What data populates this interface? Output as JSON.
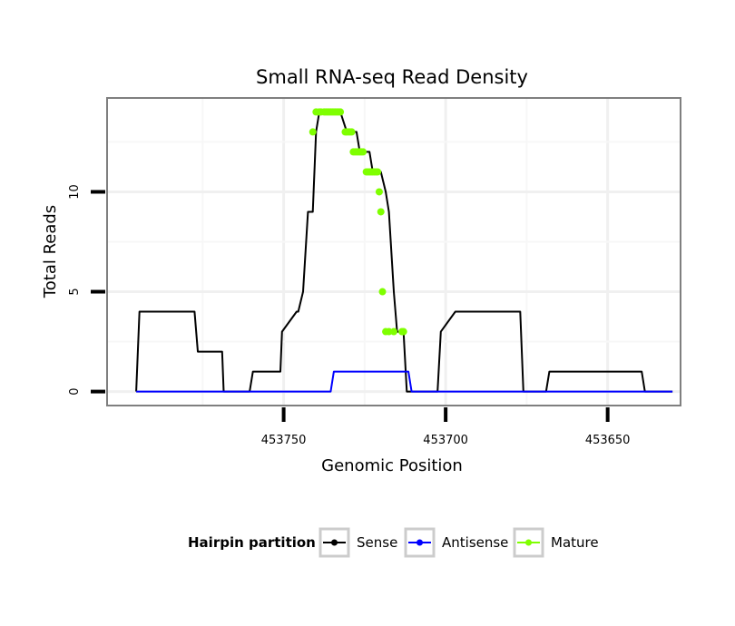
{
  "chart_data": {
    "type": "line",
    "title": "Small RNA-seq Read Density",
    "xlabel": "Genomic Position",
    "ylabel": "Total Reads",
    "x_reversed": true,
    "xlim": [
      453627.5,
      453804.5
    ],
    "ylim": [
      -0.7,
      14.7
    ],
    "x_ticks": [
      453750,
      453700,
      453650
    ],
    "x_tick_labels": [
      "453750",
      "453700",
      "453650"
    ],
    "y_ticks": [
      0,
      5,
      10
    ],
    "y_tick_labels": [
      "0",
      "5",
      "10"
    ],
    "grid": true,
    "legend": {
      "title": "Hairpin partition",
      "position": "bottom",
      "entries": [
        {
          "name": "Sense",
          "color": "#000000"
        },
        {
          "name": "Antisense",
          "color": "#0000ff"
        },
        {
          "name": "Mature",
          "color": "#7fff00"
        }
      ]
    },
    "series": [
      {
        "name": "Sense",
        "color": "#000000",
        "x": [
          453795.5,
          453794.5,
          453777.5,
          453776.5,
          453769,
          453768.5,
          453760.5,
          453759.5,
          453751,
          453750.5,
          453746,
          453745.5,
          453744,
          453742.5,
          453741,
          453740,
          453739,
          453737.5,
          453737,
          453736.5,
          453733.5,
          453732.5,
          453730.5,
          453729.5,
          453729,
          453727.5,
          453726.5,
          453725,
          453724.5,
          453724,
          453723.5,
          453722.5,
          453721,
          453720,
          453718.5,
          453717.5,
          453716,
          453715,
          453713,
          453712,
          453711,
          453709.5,
          453707.5,
          453705,
          453704.5,
          453703,
          453702.5,
          453701.5,
          453697,
          453696.5,
          453677,
          453676,
          453669,
          453668,
          453639.5,
          453638.5,
          453630
        ],
        "y": [
          0,
          4,
          4,
          2,
          2,
          0,
          0,
          1,
          1,
          3,
          4,
          4,
          5,
          9,
          9,
          13,
          14,
          14,
          14,
          14,
          14,
          14,
          13,
          13,
          13,
          13,
          12,
          12,
          12,
          12,
          12,
          11,
          11,
          11,
          10,
          9,
          5,
          3,
          3,
          0,
          0,
          0,
          0,
          0,
          0,
          0,
          0,
          3,
          4,
          4,
          4,
          0,
          0,
          1,
          1,
          0,
          0
        ]
      },
      {
        "name": "Antisense",
        "color": "#0000ff",
        "x": [
          453795.5,
          453735.5,
          453734.5,
          453711.5,
          453710.5,
          453676,
          453663,
          453630
        ],
        "y": [
          0,
          0,
          1,
          1,
          0,
          0,
          0,
          0
        ]
      },
      {
        "name": "Mature",
        "color": "#7fff00",
        "x": [
          453741,
          453740,
          453739,
          453738.5,
          453737.5,
          453737,
          453736.5,
          453736,
          453735.5,
          453735,
          453734.5,
          453734,
          453733.5,
          453733,
          453732.5,
          453731,
          453730.5,
          453730,
          453729.5,
          453729,
          453728.5,
          453728,
          453727.5,
          453727,
          453726.5,
          453726,
          453725.5,
          453724.5,
          453724,
          453723.5,
          453723,
          453722.5,
          453722,
          453721.5,
          453721,
          453720.5,
          453720,
          453719.5,
          453718.5,
          453717.5,
          453716,
          453713.5,
          453713
        ],
        "y": [
          13,
          14,
          14,
          14,
          14,
          14,
          14,
          14,
          14,
          14,
          14,
          14,
          14,
          14,
          14,
          13,
          13,
          13,
          13,
          13,
          12,
          12,
          12,
          12,
          12,
          12,
          12,
          11,
          11,
          11,
          11,
          11,
          11,
          11,
          11,
          10,
          9,
          5,
          3,
          3,
          3,
          3,
          3
        ]
      }
    ]
  }
}
